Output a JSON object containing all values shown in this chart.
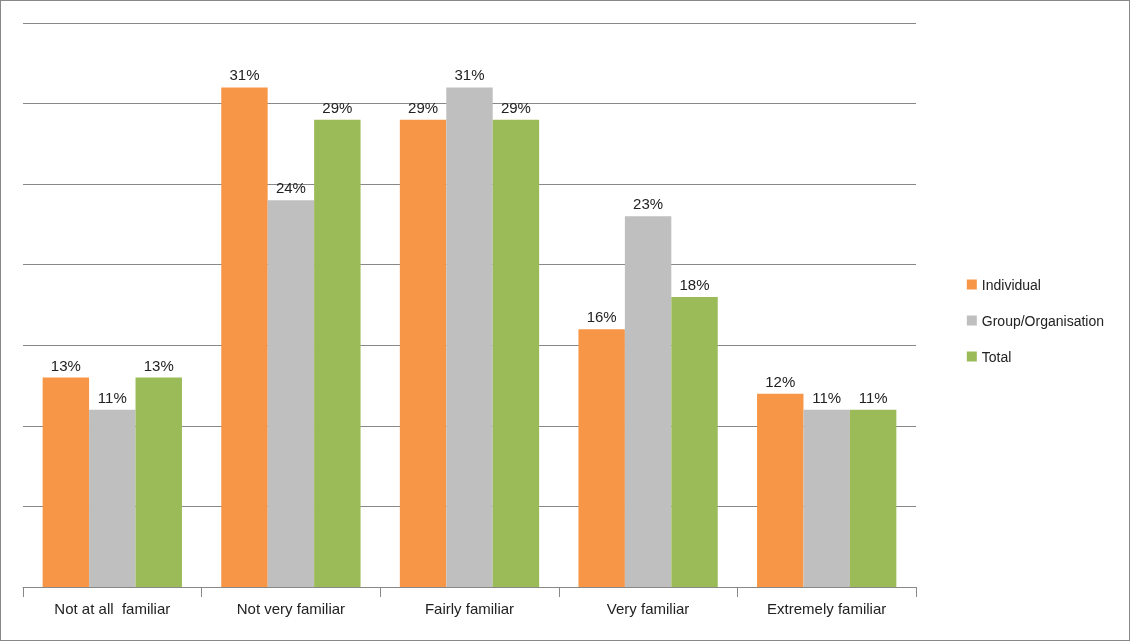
{
  "chart_data": {
    "type": "bar",
    "categories": [
      "Not at all  familiar",
      "Not very familiar",
      "Fairly familiar",
      "Very familiar",
      "Extremely familiar"
    ],
    "series": [
      {
        "name": "Individual",
        "color": "#f79646",
        "values": [
          13,
          31,
          29,
          16,
          12
        ],
        "value_labels": [
          "13%",
          "31%",
          "29%",
          "16%",
          "12%"
        ]
      },
      {
        "name": "Group/Organisation",
        "color": "#bfbfbf",
        "values": [
          11,
          24,
          31,
          23,
          11
        ],
        "value_labels": [
          "11%",
          "24%",
          "31%",
          "23%",
          "11%"
        ]
      },
      {
        "name": "Total",
        "color": "#9bbb59",
        "values": [
          13,
          29,
          29,
          18,
          11
        ],
        "value_labels": [
          "13%",
          "29%",
          "29%",
          "18%",
          "11%"
        ]
      }
    ],
    "grid": "y",
    "tick_labels": "x",
    "legend": "right"
  }
}
